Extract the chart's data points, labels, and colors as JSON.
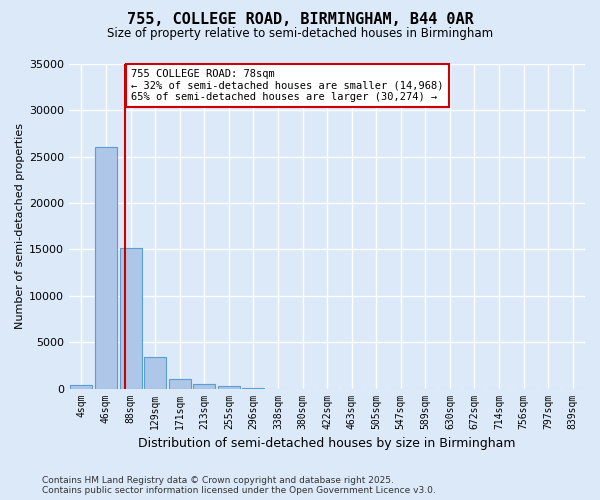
{
  "title": "755, COLLEGE ROAD, BIRMINGHAM, B44 0AR",
  "subtitle": "Size of property relative to semi-detached houses in Birmingham",
  "xlabel": "Distribution of semi-detached houses by size in Birmingham",
  "ylabel": "Number of semi-detached properties",
  "property_size": 78,
  "property_label": "755 COLLEGE ROAD: 78sqm",
  "pct_smaller": 32,
  "pct_larger": 65,
  "n_smaller": 14968,
  "n_larger": 30274,
  "bar_color": "#aec6e8",
  "bar_edge_color": "#5a9fd4",
  "vline_color": "#cc0000",
  "annotation_box_color": "#cc0000",
  "background_color": "#dce9f8",
  "grid_color": "#ffffff",
  "categories": [
    "4sqm",
    "46sqm",
    "88sqm",
    "129sqm",
    "171sqm",
    "213sqm",
    "255sqm",
    "296sqm",
    "338sqm",
    "380sqm",
    "422sqm",
    "463sqm",
    "505sqm",
    "547sqm",
    "589sqm",
    "630sqm",
    "672sqm",
    "714sqm",
    "756sqm",
    "797sqm",
    "839sqm"
  ],
  "values": [
    400,
    26100,
    15200,
    3350,
    1050,
    480,
    280,
    30,
    0,
    0,
    0,
    0,
    0,
    0,
    0,
    0,
    0,
    0,
    0,
    0,
    0
  ],
  "ylim": [
    0,
    35000
  ],
  "yticks": [
    0,
    5000,
    10000,
    15000,
    20000,
    25000,
    30000,
    35000
  ],
  "footer_line1": "Contains HM Land Registry data © Crown copyright and database right 2025.",
  "footer_line2": "Contains public sector information licensed under the Open Government Licence v3.0."
}
